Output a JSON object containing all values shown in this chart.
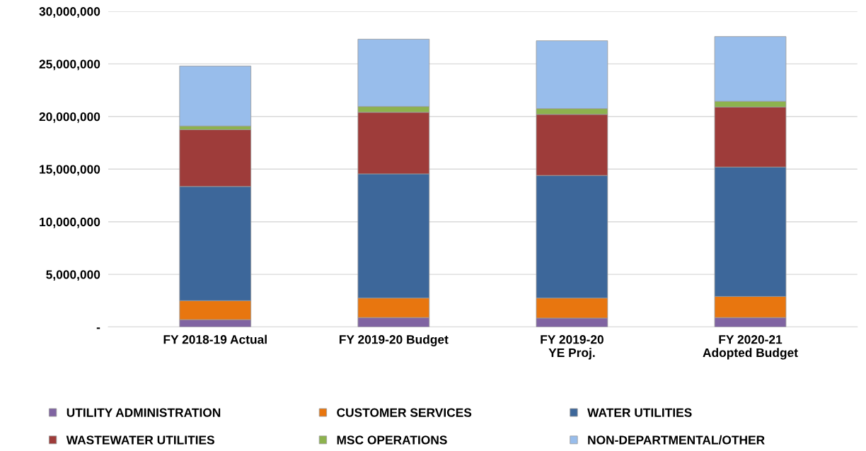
{
  "chart_data": {
    "type": "bar",
    "stacked": true,
    "categories": [
      "FY 2018-19 Actual",
      "FY 2019-20 Budget",
      "FY 2019-20\nYE Proj.",
      "FY 2020-21\nAdopted Budget"
    ],
    "series": [
      {
        "name": "UTILITY ADMINISTRATION",
        "color": "#8064a2",
        "values": [
          700000,
          900000,
          850000,
          900000
        ]
      },
      {
        "name": "CUSTOMER SERVICES",
        "color": "#e8760f",
        "values": [
          1800000,
          1850000,
          1900000,
          2000000
        ]
      },
      {
        "name": "WATER UTILITIES",
        "color": "#3d679a",
        "values": [
          10850000,
          11800000,
          11650000,
          12300000
        ]
      },
      {
        "name": "WASTEWATER UTILITIES",
        "color": "#9e3c3a",
        "values": [
          5400000,
          5850000,
          5800000,
          5700000
        ]
      },
      {
        "name": "MSC OPERATIONS",
        "color": "#8db24e",
        "values": [
          350000,
          550000,
          550000,
          550000
        ]
      },
      {
        "name": "NON-DEPARTMENTAL/OTHER",
        "color": "#98bdeb",
        "values": [
          5700000,
          6400000,
          6450000,
          6150000
        ]
      }
    ],
    "ylim": [
      0,
      30000000
    ],
    "yticks": [
      {
        "value": 0,
        "label": "-"
      },
      {
        "value": 5000000,
        "label": "5,000,000"
      },
      {
        "value": 10000000,
        "label": "10,000,000"
      },
      {
        "value": 15000000,
        "label": "15,000,000"
      },
      {
        "value": 20000000,
        "label": "20,000,000"
      },
      {
        "value": 25000000,
        "label": "25,000,000"
      },
      {
        "value": 30000000,
        "label": "30,000,000"
      }
    ],
    "grid": "y",
    "legend": "bottom"
  }
}
